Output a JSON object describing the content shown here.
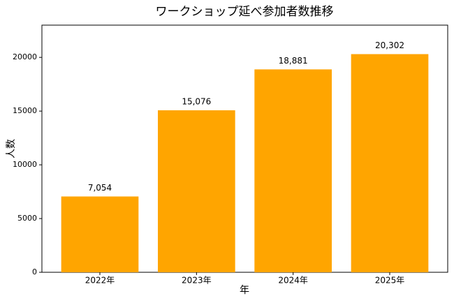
{
  "chart_data": {
    "type": "bar",
    "title": "ワークショップ延べ参加者数推移",
    "x_label": "年",
    "y_label": "人数",
    "categories": [
      "2022年",
      "2023年",
      "2024年",
      "2025年"
    ],
    "values": [
      7054,
      15076,
      18881,
      20302
    ],
    "value_labels": [
      "7,054",
      "15,076",
      "18,881",
      "20,302"
    ],
    "color": "#ffa500",
    "ylim": [
      0,
      23000
    ],
    "yticks": [
      0,
      5000,
      10000,
      15000,
      20000
    ],
    "grid": false
  }
}
